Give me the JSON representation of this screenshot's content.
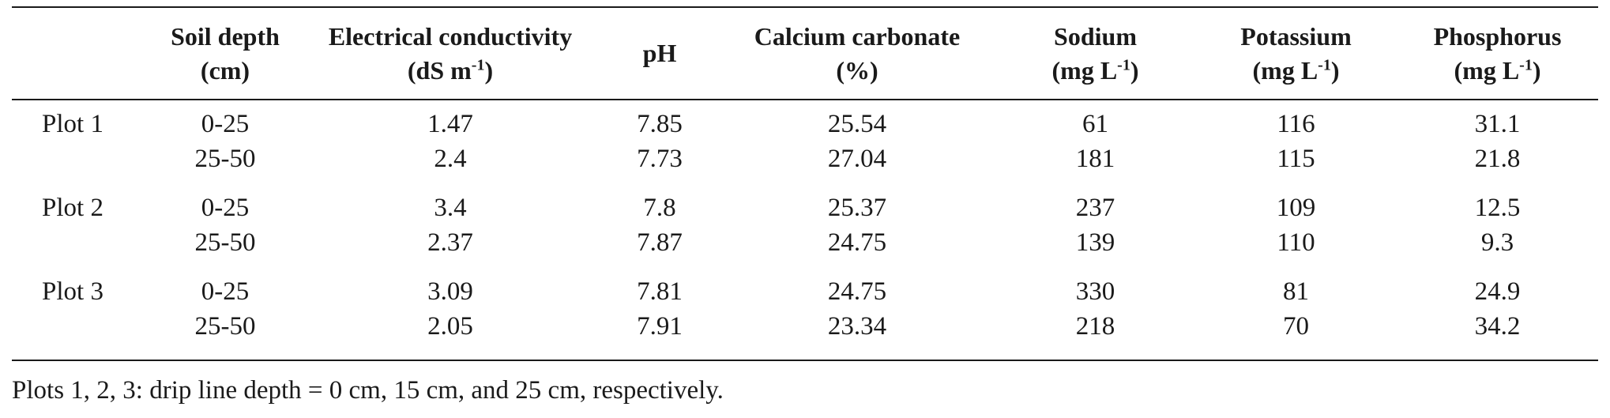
{
  "table": {
    "headers": [
      {
        "label": "",
        "unit": ""
      },
      {
        "label": "Soil depth",
        "unit": "(cm)"
      },
      {
        "label": "Electrical conductivity",
        "unit": "(dS m",
        "unit_sup": "-1",
        "unit_end": ")"
      },
      {
        "label": "pH",
        "unit": ""
      },
      {
        "label": "Calcium carbonate",
        "unit": "(%)"
      },
      {
        "label": "Sodium",
        "unit": "(mg L",
        "unit_sup": "-1",
        "unit_end": ")"
      },
      {
        "label": "Potassium",
        "unit": "(mg L",
        "unit_sup": "-1",
        "unit_end": ")"
      },
      {
        "label": "Phosphorus",
        "unit": "(mg L",
        "unit_sup": "-1",
        "unit_end": ")"
      }
    ],
    "plots": [
      {
        "name": "Plot 1",
        "rows": [
          {
            "depth": "0-25",
            "ec": "1.47",
            "ph": "7.85",
            "caco3": "25.54",
            "na": "61",
            "k": "116",
            "p": "31.1"
          },
          {
            "depth": "25-50",
            "ec": "2.4",
            "ph": "7.73",
            "caco3": "27.04",
            "na": "181",
            "k": "115",
            "p": "21.8"
          }
        ]
      },
      {
        "name": "Plot 2",
        "rows": [
          {
            "depth": "0-25",
            "ec": "3.4",
            "ph": "7.8",
            "caco3": "25.37",
            "na": "237",
            "k": "109",
            "p": "12.5"
          },
          {
            "depth": "25-50",
            "ec": "2.37",
            "ph": "7.87",
            "caco3": "24.75",
            "na": "139",
            "k": "110",
            "p": "9.3"
          }
        ]
      },
      {
        "name": "Plot 3",
        "rows": [
          {
            "depth": "0-25",
            "ec": "3.09",
            "ph": "7.81",
            "caco3": "24.75",
            "na": "330",
            "k": "81",
            "p": "24.9"
          },
          {
            "depth": "25-50",
            "ec": "2.05",
            "ph": "7.91",
            "caco3": "23.34",
            "na": "218",
            "k": "70",
            "p": "34.2"
          }
        ]
      }
    ]
  },
  "footnote": "Plots 1, 2, 3: drip line depth = 0 cm, 15 cm, and 25 cm, respectively."
}
